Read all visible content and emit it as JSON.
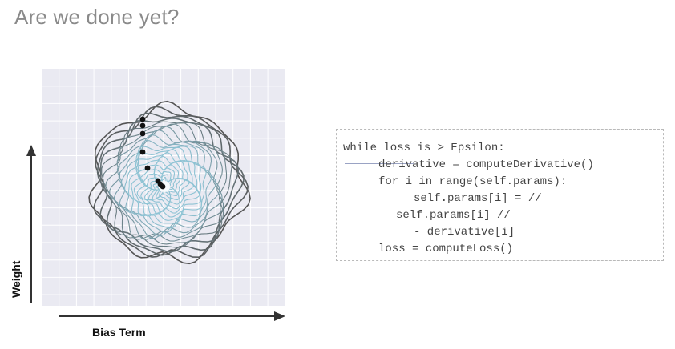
{
  "slide": {
    "title": "Are we done yet?"
  },
  "plot": {
    "y_axis_label": "Weight",
    "x_axis_label": "Bias Term",
    "grid": true,
    "background_color": "#eaeaf2",
    "contour_outer_color": "#555555",
    "contour_inner_color": "#8ec3d4",
    "point_color": "#111111",
    "contour_count": 22,
    "descent_point_count": 8
  },
  "code": {
    "lines": [
      {
        "indent": 0,
        "text": "while loss is > Epsilon:"
      },
      {
        "indent": 4,
        "text": "derivative = computeDerivative()"
      },
      {
        "indent": 4,
        "text": "for i in range(self.params):"
      },
      {
        "indent": 8,
        "text": "self.params[i] = //"
      },
      {
        "indent": 6,
        "text": "self.params[i] //"
      },
      {
        "indent": 8,
        "text": "- derivative[i]"
      },
      {
        "indent": 4,
        "text": "loss = computeLoss()"
      }
    ]
  }
}
